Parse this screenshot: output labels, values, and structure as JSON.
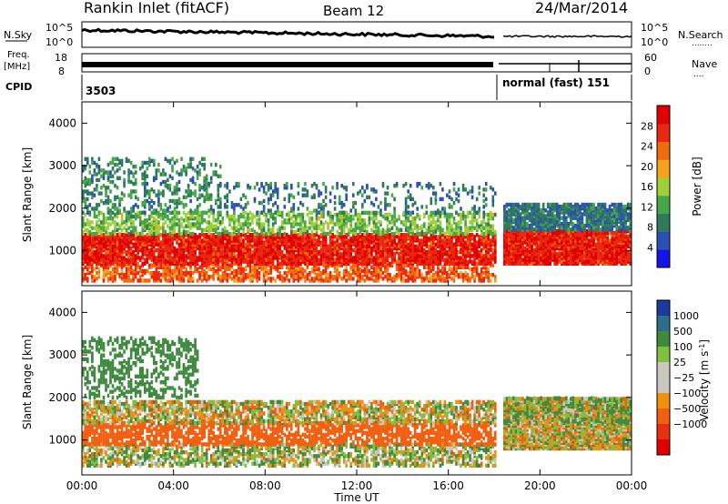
{
  "header": {
    "site": "Rankin Inlet (fitACF)",
    "beam": "Beam 12",
    "date": "24/Mar/2014"
  },
  "sky_panel": {
    "left_label": "N.Sky",
    "left_ticks": [
      "10^5",
      "10^0"
    ],
    "right_ticks": [
      "10^5",
      "10^0"
    ],
    "right_label": "N.Search",
    "right_legend_dots": "........"
  },
  "freq_panel": {
    "left_label_1": "Freq.",
    "left_label_2": "[MHz]",
    "left_ticks": [
      "18",
      "8"
    ],
    "right_ticks": [
      "60",
      "0"
    ],
    "right_label": "Nave",
    "right_legend_dots": "...."
  },
  "cpid_panel": {
    "label": "CPID",
    "mode_1": "3503",
    "mode_2": "normal (fast) 151"
  },
  "colors": {
    "frame": "#000000",
    "power_scale": [
      "#1414e6",
      "#2a50b4",
      "#2f7a5a",
      "#47a647",
      "#9ed03a",
      "#f5a31a",
      "#f06a0f",
      "#e82810",
      "#e00000"
    ],
    "velocity_scale": [
      "#1a3a9e",
      "#2f6e8a",
      "#3f8a3f",
      "#80c040",
      "#c8c8c0",
      "#c8c8c0",
      "#f09010",
      "#f06010",
      "#e83010",
      "#e00000"
    ]
  },
  "chart_data": [
    {
      "type": "heatmap",
      "name": "power",
      "ylabel": "Slant Range [km]",
      "ylim": [
        180,
        4500
      ],
      "y_ticks": [
        "1000",
        "2000",
        "3000",
        "4000"
      ],
      "y_tick_values": [
        1000,
        2000,
        3000,
        4000
      ],
      "x_ticks": [
        "00:00",
        "04:00",
        "08:00",
        "12:00",
        "16:00",
        "20:00",
        "00:00"
      ],
      "xlim_hours": [
        0,
        24
      ],
      "colorbar_label": "Power [dB]",
      "colorbar_ticks": [
        "4",
        "8",
        "12",
        "16",
        "20",
        "24",
        "28"
      ],
      "colorbar_tick_values": [
        4,
        8,
        12,
        16,
        20,
        24,
        28
      ],
      "colorbar_range": [
        0,
        32
      ],
      "data_gap_hours": [
        18.05,
        18.35
      ],
      "bands": [
        {
          "t0": 0,
          "t1": 18,
          "r0": 300,
          "r1": 700,
          "value": 24,
          "density": 0.55
        },
        {
          "t0": 0,
          "t1": 18,
          "r0": 700,
          "r1": 1400,
          "value": 28,
          "density": 0.8
        },
        {
          "t0": 0,
          "t1": 18,
          "r0": 1400,
          "r1": 1900,
          "value": 14,
          "density": 0.45
        },
        {
          "t0": 0,
          "t1": 6,
          "r0": 1900,
          "r1": 3200,
          "value": 10,
          "density": 0.25
        },
        {
          "t0": 6,
          "t1": 18,
          "r0": 1900,
          "r1": 2600,
          "value": 8,
          "density": 0.15
        },
        {
          "t0": 18.4,
          "t1": 24,
          "r0": 700,
          "r1": 1500,
          "value": 28,
          "density": 0.9
        },
        {
          "t0": 18.4,
          "t1": 24,
          "r0": 1500,
          "r1": 2100,
          "value": 8,
          "density": 0.8
        }
      ]
    },
    {
      "type": "heatmap",
      "name": "velocity",
      "ylabel": "Slant Range [km]",
      "xlabel": "Time UT",
      "ylim": [
        180,
        4500
      ],
      "y_ticks": [
        "1000",
        "2000",
        "3000",
        "4000"
      ],
      "y_tick_values": [
        1000,
        2000,
        3000,
        4000
      ],
      "x_ticks": [
        "00:00",
        "04:00",
        "08:00",
        "12:00",
        "16:00",
        "20:00",
        "00:00"
      ],
      "xlim_hours": [
        0,
        24
      ],
      "colorbar_label": "Velocity [m s^-1]",
      "colorbar_ticks": [
        "1000",
        "500",
        "100",
        "25",
        "−25",
        "−100",
        "−500",
        "−1000"
      ],
      "colorbar_tick_values": [
        1000,
        500,
        100,
        25,
        -25,
        -100,
        -500,
        -1000
      ],
      "data_gap_hours": [
        18.05,
        18.35
      ],
      "bands": [
        {
          "t0": 0,
          "t1": 18,
          "r0": 400,
          "r1": 900,
          "value": 50,
          "density": 0.5
        },
        {
          "t0": 0,
          "t1": 18,
          "r0": 900,
          "r1": 1400,
          "value": -300,
          "density": 0.55
        },
        {
          "t0": 0,
          "t1": 18,
          "r0": 1400,
          "r1": 1900,
          "value": 0,
          "density": 0.6
        },
        {
          "t0": 0,
          "t1": 5,
          "r0": 2000,
          "r1": 3400,
          "value": 300,
          "density": 0.3
        },
        {
          "t0": 18.4,
          "t1": 24,
          "r0": 800,
          "r1": 2000,
          "value": 0,
          "density": 0.95
        },
        {
          "t0": 18.4,
          "t1": 24,
          "r0": 1400,
          "r1": 2000,
          "value": 150,
          "density": 0.2
        }
      ]
    }
  ]
}
